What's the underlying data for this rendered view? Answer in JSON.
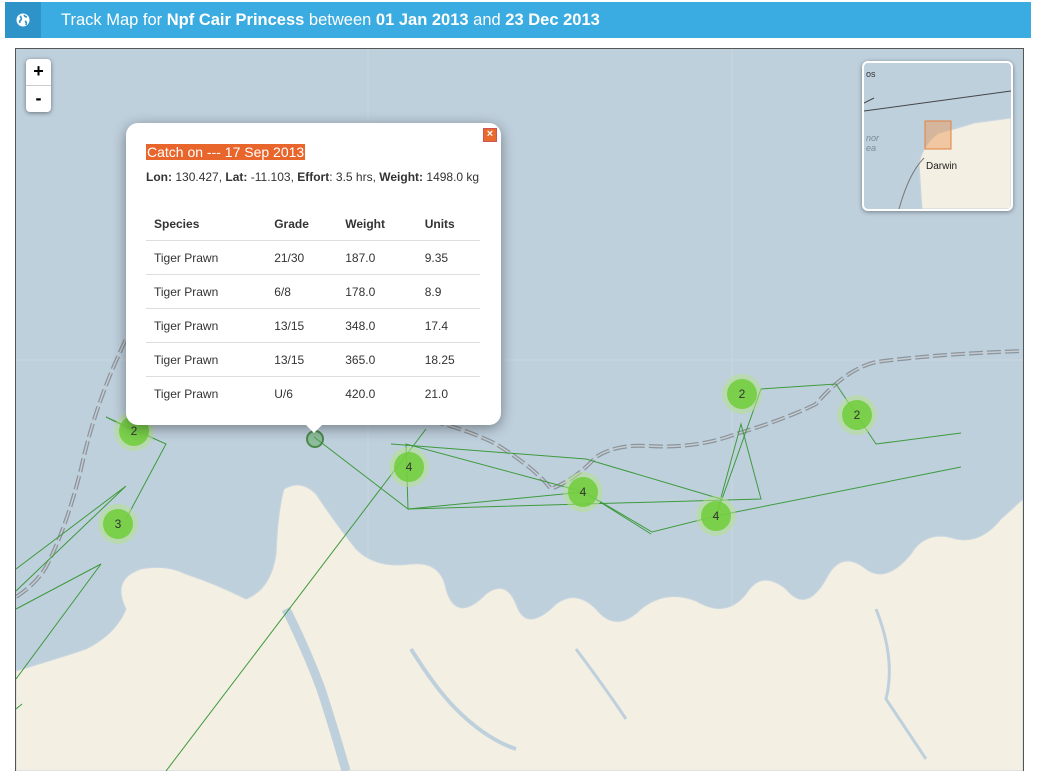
{
  "header": {
    "icon": "globe-icon",
    "prefix": "Track Map for",
    "vessel": "Npf Cair Princess",
    "between": "between",
    "start_date": "01 Jan 2013",
    "and": "and",
    "end_date": "23 Dec 2013"
  },
  "zoom": {
    "in_label": "+",
    "out_label": "-"
  },
  "minimap": {
    "city_label": "Darwin",
    "corner_label": "os",
    "sea_label_1": "nor",
    "sea_label_2": "ea"
  },
  "clusters": [
    {
      "count": "2"
    },
    {
      "count": "3"
    },
    {
      "count": "4"
    },
    {
      "count": "4"
    },
    {
      "count": "2"
    },
    {
      "count": "4"
    },
    {
      "count": "2"
    }
  ],
  "popup": {
    "title": "Catch on --- 17 Sep 2013",
    "lon_label": "Lon:",
    "lon": "130.427",
    "lat_label": "Lat:",
    "lat": "-11.103",
    "effort_label": "Effort",
    "effort": "3.5 hrs",
    "weight_label": "Weight:",
    "weight": "1498.0 kg",
    "columns": [
      "Species",
      "Grade",
      "Weight",
      "Units"
    ],
    "rows": [
      [
        "Tiger Prawn",
        "21/30",
        "187.0",
        "9.35"
      ],
      [
        "Tiger Prawn",
        "6/8",
        "178.0",
        "8.9"
      ],
      [
        "Tiger Prawn",
        "13/15",
        "348.0",
        "17.4"
      ],
      [
        "Tiger Prawn",
        "13/15",
        "365.0",
        "18.25"
      ],
      [
        "Tiger Prawn",
        "U/6",
        "420.0",
        "21.0"
      ]
    ]
  },
  "colors": {
    "header": "#3aace1",
    "sea": "#bfd0dd",
    "land": "#f3efe3",
    "track": "#3d9a3d",
    "cluster": "#6ecc39",
    "popup_title": "#e8652b"
  }
}
